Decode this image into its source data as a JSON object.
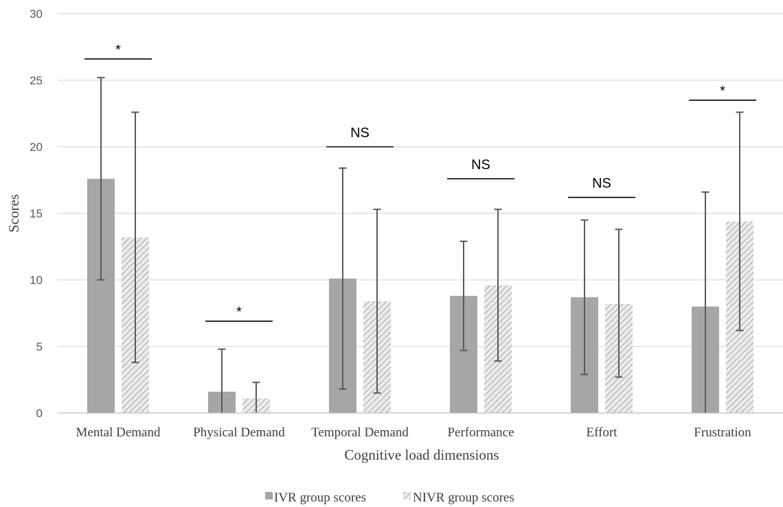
{
  "chart_data": {
    "type": "bar",
    "title": "",
    "xlabel": "Cognitive load dimensions",
    "ylabel": "Scores",
    "ylim": [
      0,
      30
    ],
    "yticks": [
      0,
      5,
      10,
      15,
      20,
      25,
      30
    ],
    "grid": true,
    "legend_position": "bottom",
    "categories": [
      "Mental Demand",
      "Physical Demand",
      "Temporal Demand",
      "Performance",
      "Effort",
      "Frustration"
    ],
    "series": [
      {
        "name": "IVR group scores",
        "values": [
          17.6,
          1.6,
          10.1,
          8.8,
          8.7,
          8.0
        ],
        "error_low": [
          10.0,
          0.0,
          1.8,
          4.7,
          2.9,
          0.0
        ],
        "error_high": [
          25.2,
          4.8,
          18.4,
          12.9,
          14.5,
          16.6
        ],
        "color": "#a6a6a6",
        "pattern": "solid"
      },
      {
        "name": "NIVR group scores",
        "values": [
          13.2,
          1.1,
          8.4,
          9.6,
          8.2,
          14.4
        ],
        "error_low": [
          3.8,
          0.0,
          1.5,
          3.9,
          2.7,
          6.2
        ],
        "error_high": [
          22.6,
          2.3,
          15.3,
          15.3,
          13.8,
          22.6
        ],
        "color": "#d9d9d9",
        "pattern": "hatched"
      }
    ],
    "annotations": [
      {
        "category": "Mental Demand",
        "label": "*",
        "y": 26.6
      },
      {
        "category": "Physical Demand",
        "label": "*",
        "y": 6.9
      },
      {
        "category": "Temporal Demand",
        "label": "NS",
        "y": 20.0
      },
      {
        "category": "Performance",
        "label": "NS",
        "y": 17.6
      },
      {
        "category": "Effort",
        "label": "NS",
        "y": 16.2
      },
      {
        "category": "Frustration",
        "label": "*",
        "y": 23.5
      }
    ]
  }
}
